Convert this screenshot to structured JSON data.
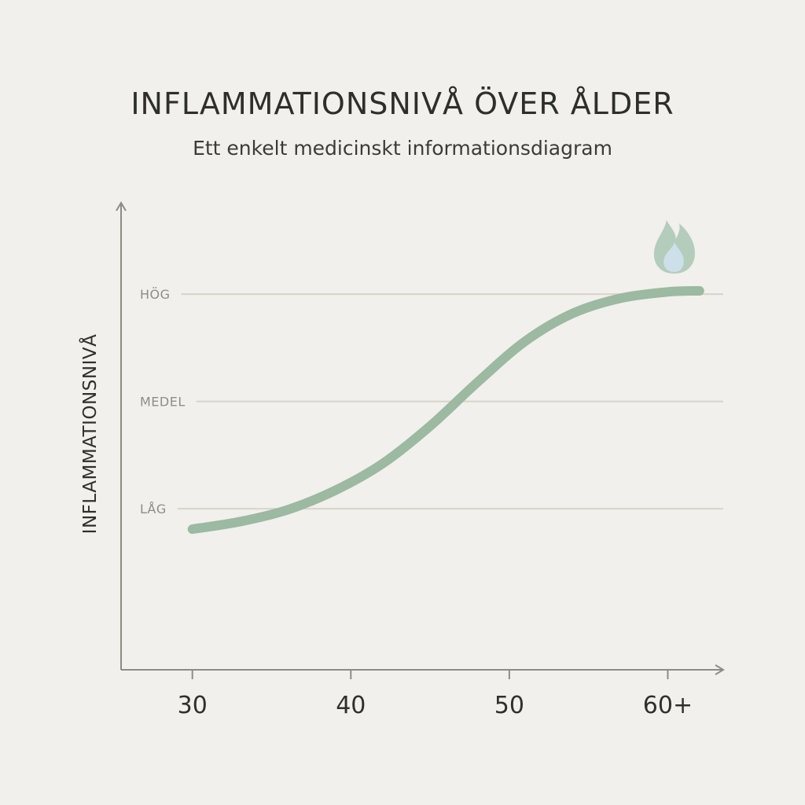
{
  "chart_data": {
    "type": "line",
    "title": "INFLAMMATIONSNIVÅ ÖVER ÅLDER",
    "subtitle": "Ett enkelt medicinskt informationsdiagram",
    "ylabel": "INFLAMMATIONSNIVÅ",
    "xlabel": "",
    "x_ticks": [
      "30",
      "40",
      "50",
      "60+"
    ],
    "y_levels": [
      {
        "label": "LÅG",
        "value": 1
      },
      {
        "label": "MEDEL",
        "value": 2
      },
      {
        "label": "HÖG",
        "value": 3
      }
    ],
    "xlim": [
      25.5,
      63.5
    ],
    "ylim": [
      -0.5,
      3.85
    ],
    "grid": true,
    "series": [
      {
        "color": "#9cb9a1",
        "x": [
          30,
          33,
          36,
          39,
          42,
          45,
          48,
          51,
          54,
          57,
          60,
          62
        ],
        "y": [
          0.81,
          0.88,
          0.99,
          1.17,
          1.42,
          1.77,
          2.18,
          2.56,
          2.82,
          2.96,
          3.02,
          3.03
        ]
      }
    ],
    "annotations": [
      {
        "type": "icon",
        "name": "flame-icon",
        "x": 62,
        "y": 3.03
      }
    ],
    "colors": {
      "background": "#f1f0ec",
      "axis": "#8d8c86",
      "grid": "#d8d4ca",
      "level_label": "#8f8d87",
      "tick_label": "#2f302c",
      "flame_outer": "#a9c5b4",
      "flame_inner": "#cddfe9"
    }
  }
}
